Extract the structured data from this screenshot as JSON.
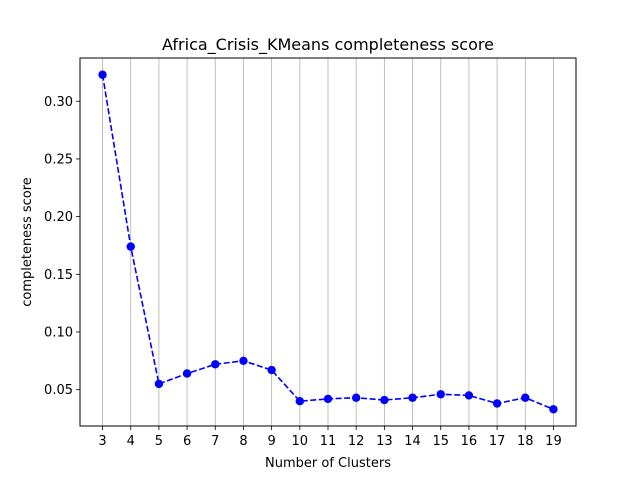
{
  "chart_data": {
    "type": "line",
    "title": "Africa_Crisis_KMeans completeness score",
    "xlabel": "Number of Clusters",
    "ylabel": "completeness score",
    "x": [
      3,
      4,
      5,
      6,
      7,
      8,
      9,
      10,
      11,
      12,
      13,
      14,
      15,
      16,
      17,
      18,
      19
    ],
    "series": [
      {
        "values": [
          0.323,
          0.174,
          0.055,
          0.064,
          0.072,
          0.075,
          0.067,
          0.04,
          0.042,
          0.043,
          0.041,
          0.043,
          0.046,
          0.045,
          0.038,
          0.043,
          0.033
        ],
        "color": "#0000ff",
        "line_style": "dashed",
        "marker": "circle"
      }
    ],
    "xticks": [
      "3",
      "4",
      "5",
      "6",
      "7",
      "8",
      "9",
      "10",
      "11",
      "12",
      "13",
      "14",
      "15",
      "16",
      "17",
      "18",
      "19"
    ],
    "yticks": [
      0.05,
      0.1,
      0.15,
      0.2,
      0.25,
      0.3
    ],
    "ytick_labels": [
      "0.05",
      "0.10",
      "0.15",
      "0.20",
      "0.25",
      "0.30"
    ],
    "xlim": [
      2.2,
      19.8
    ],
    "ylim": [
      0.0185,
      0.3375
    ],
    "grid": "x-only"
  }
}
